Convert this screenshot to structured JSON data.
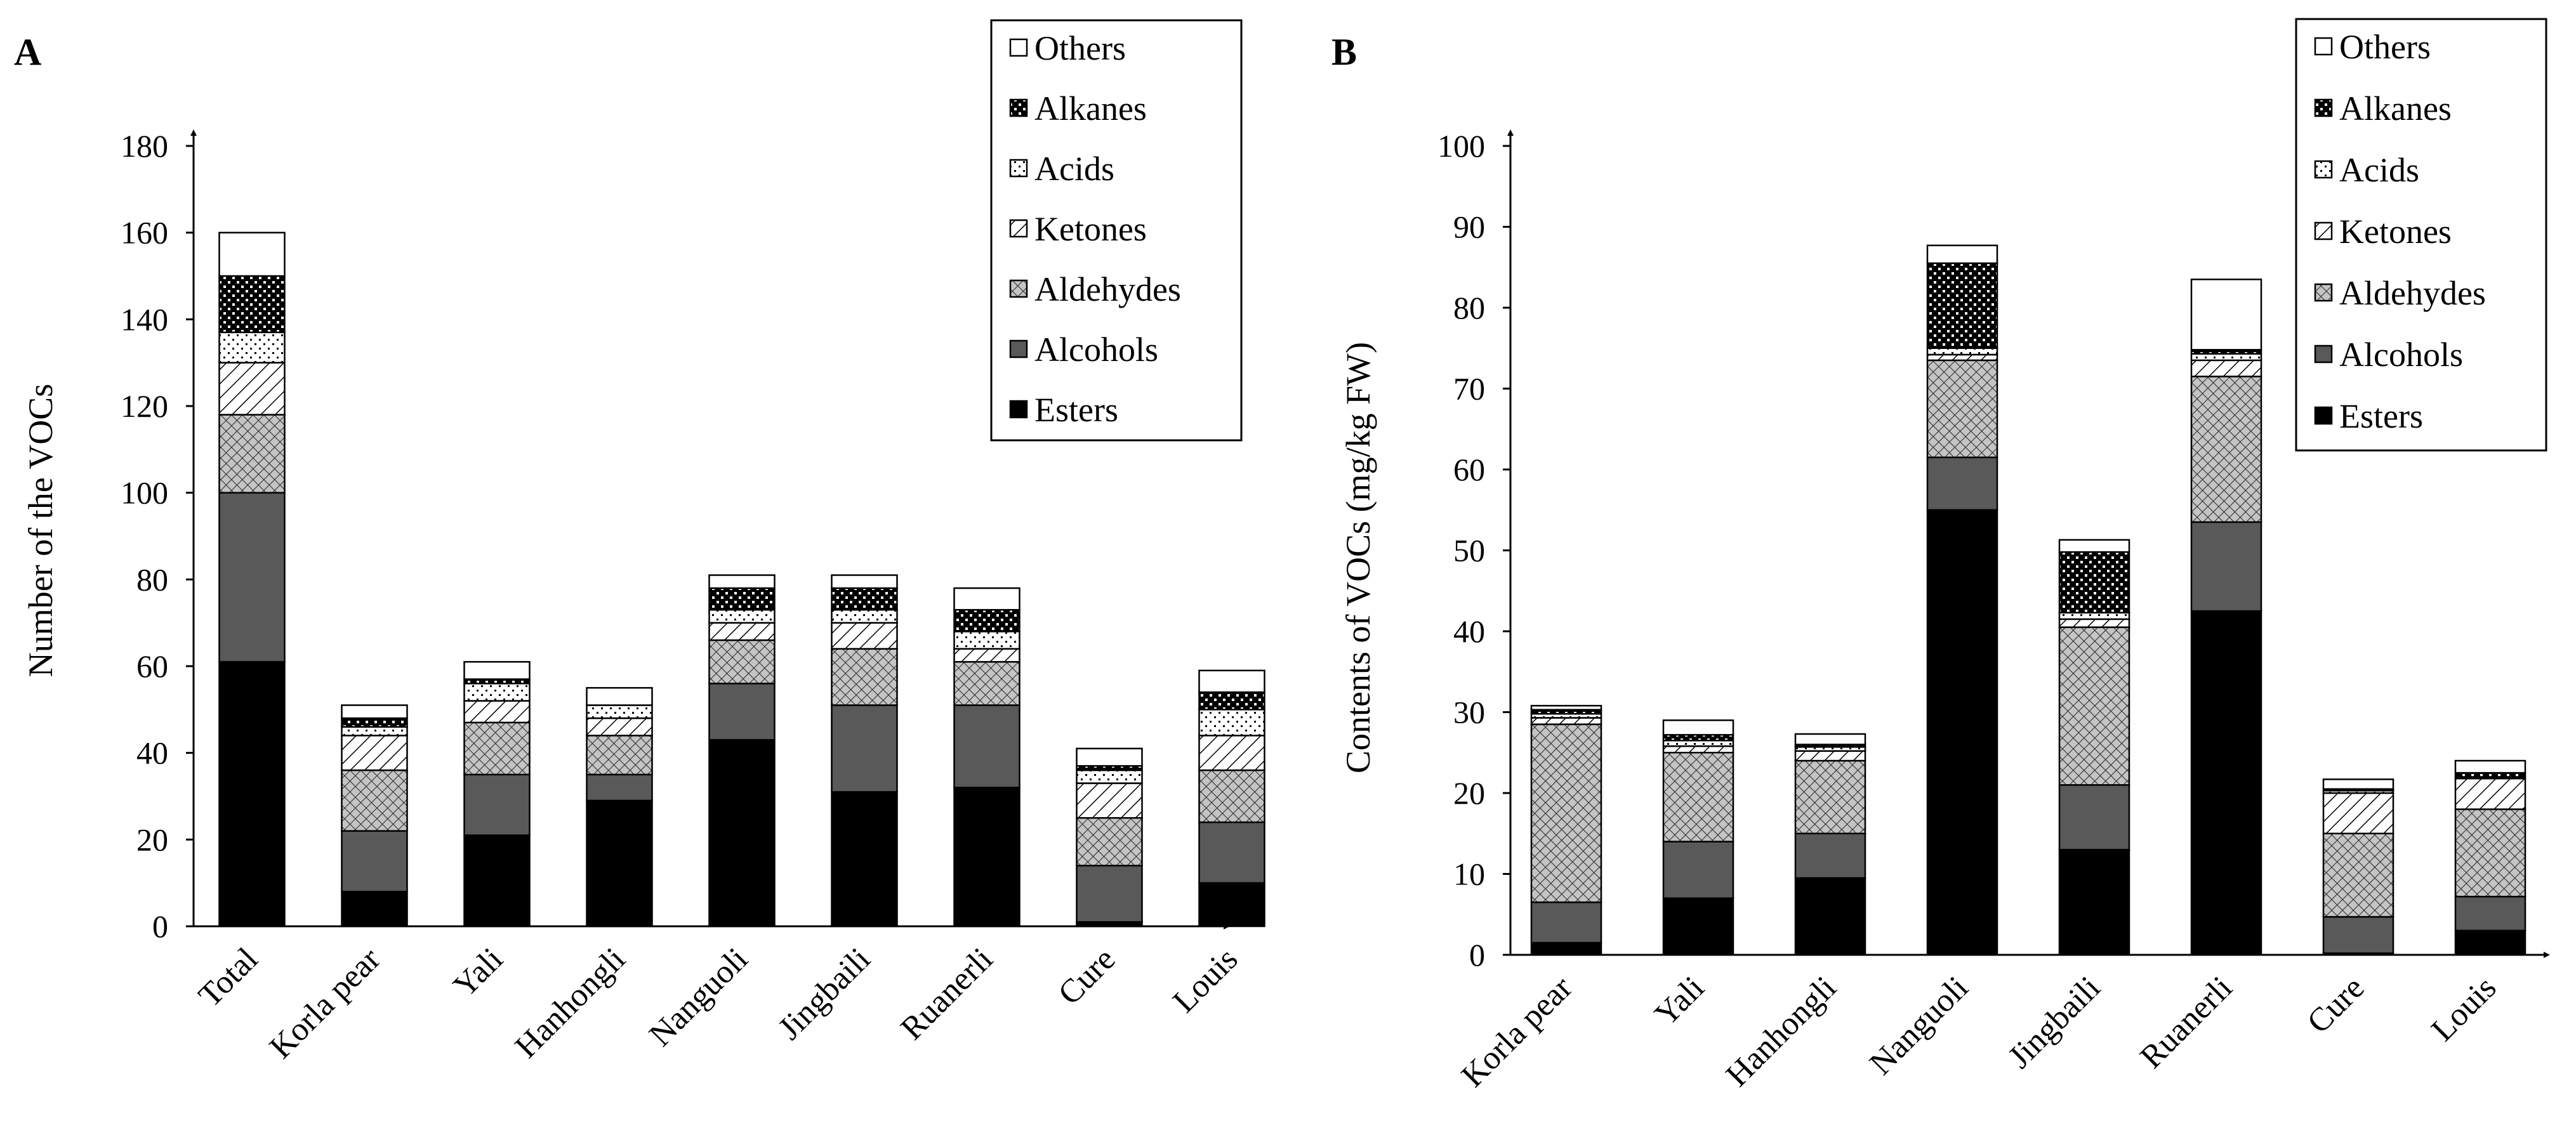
{
  "chart_data": [
    {
      "type": "bar",
      "stacked": true,
      "panel_label": "A",
      "title": "",
      "xlabel": "",
      "ylabel": "Number of the VOCs",
      "ylim": [
        0,
        180
      ],
      "yticks": [
        0,
        20,
        40,
        60,
        80,
        100,
        120,
        140,
        160,
        180
      ],
      "categories": [
        "Total",
        "Korla pear",
        "Yali",
        "Hanhongli",
        "Nanguoli",
        "Jingbaili",
        "Ruanerli",
        "Cure",
        "Louis"
      ],
      "legend_position": "top-right",
      "series": [
        {
          "name": "Esters",
          "values": [
            61,
            8,
            21,
            29,
            43,
            31,
            32,
            1,
            10
          ]
        },
        {
          "name": "Alcohols",
          "values": [
            39,
            14,
            14,
            6,
            13,
            20,
            19,
            13,
            14
          ]
        },
        {
          "name": "Aldehydes",
          "values": [
            18,
            14,
            12,
            9,
            10,
            13,
            10,
            11,
            12
          ]
        },
        {
          "name": "Ketones",
          "values": [
            12,
            8,
            5,
            4,
            4,
            6,
            3,
            8,
            8
          ]
        },
        {
          "name": "Acids",
          "values": [
            7,
            2,
            4,
            3,
            3,
            3,
            4,
            3,
            6
          ]
        },
        {
          "name": "Alkanes",
          "values": [
            13,
            2,
            1,
            0,
            5,
            5,
            5,
            1,
            4
          ]
        },
        {
          "name": "Others",
          "values": [
            10,
            3,
            4,
            4,
            3,
            3,
            5,
            4,
            5
          ]
        }
      ]
    },
    {
      "type": "bar",
      "stacked": true,
      "panel_label": "B",
      "title": "",
      "xlabel": "",
      "ylabel": "Contents of VOCs (mg/kg FW)",
      "ylim": [
        0,
        100
      ],
      "yticks": [
        0,
        10,
        20,
        30,
        40,
        50,
        60,
        70,
        80,
        90,
        100
      ],
      "categories": [
        "Korla pear",
        "Yali",
        "Hanhongli",
        "Nanguoli",
        "Jingbaili",
        "Ruanerli",
        "Cure",
        "Louis"
      ],
      "legend_position": "top-right",
      "series": [
        {
          "name": "Esters",
          "values": [
            1.5,
            7.0,
            9.5,
            55.0,
            13.0,
            42.5,
            0.2,
            3.0
          ]
        },
        {
          "name": "Alcohols",
          "values": [
            5.0,
            7.0,
            5.5,
            6.5,
            8.0,
            11.0,
            4.5,
            4.2
          ]
        },
        {
          "name": "Aldehydes",
          "values": [
            22.0,
            11.0,
            9.0,
            12.0,
            19.5,
            18.0,
            10.3,
            10.8
          ]
        },
        {
          "name": "Ketones",
          "values": [
            0.8,
            0.8,
            1.2,
            0.7,
            1.0,
            2.0,
            5.0,
            3.8
          ]
        },
        {
          "name": "Acids",
          "values": [
            0.5,
            0.7,
            0.5,
            0.8,
            0.8,
            0.8,
            0.3,
            0.2
          ]
        },
        {
          "name": "Alkanes",
          "values": [
            0.5,
            0.7,
            0.3,
            10.5,
            7.5,
            0.5,
            0.2,
            0.5
          ]
        },
        {
          "name": "Others",
          "values": [
            0.5,
            1.8,
            1.3,
            2.2,
            1.5,
            8.7,
            1.2,
            1.5
          ]
        }
      ]
    }
  ]
}
